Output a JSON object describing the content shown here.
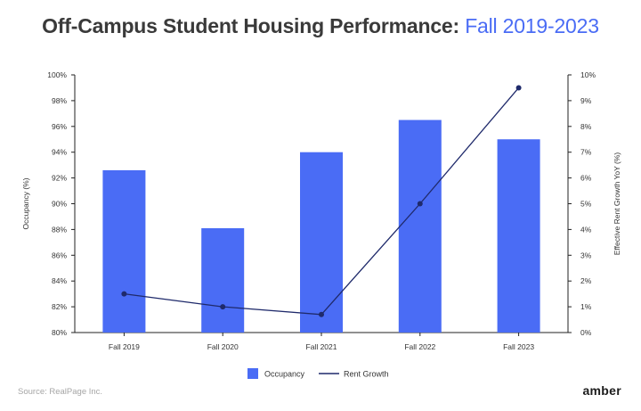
{
  "title": {
    "main": "Off-Campus Student Housing Performance:",
    "highlight": "Fall 2019-2023"
  },
  "source": "Source: RealPage Inc.",
  "brand": "amber",
  "colors": {
    "bar": "#4a6cf5",
    "line": "#1f2a6b",
    "title": "#3a3a3a",
    "title_accent": "#4a6cf5"
  },
  "chart_data": {
    "type": "bar",
    "categories": [
      "Fall 2019",
      "Fall 2020",
      "Fall 2021",
      "Fall 2022",
      "Fall 2023"
    ],
    "series": [
      {
        "name": "Occupancy",
        "type": "bar",
        "axis": "left",
        "values": [
          92.6,
          88.1,
          94.0,
          96.5,
          95.0
        ]
      },
      {
        "name": "Rent Growth",
        "type": "line",
        "axis": "right",
        "values": [
          1.5,
          1.0,
          0.7,
          5.0,
          9.5
        ]
      }
    ],
    "ylabel": "Occupancy (%)",
    "ylabel_right": "Effective Rent Growth YoY (%)",
    "ylim": [
      80,
      100
    ],
    "ylim_right": [
      0,
      10
    ],
    "yticks": [
      "80%",
      "82%",
      "84%",
      "86%",
      "88%",
      "90%",
      "92%",
      "94%",
      "96%",
      "98%",
      "100%"
    ],
    "yticks_right": [
      "0%",
      "1%",
      "2%",
      "3%",
      "4%",
      "5%",
      "6%",
      "7%",
      "8%",
      "9%",
      "10%"
    ],
    "grid": false,
    "legend_position": "bottom-center"
  }
}
